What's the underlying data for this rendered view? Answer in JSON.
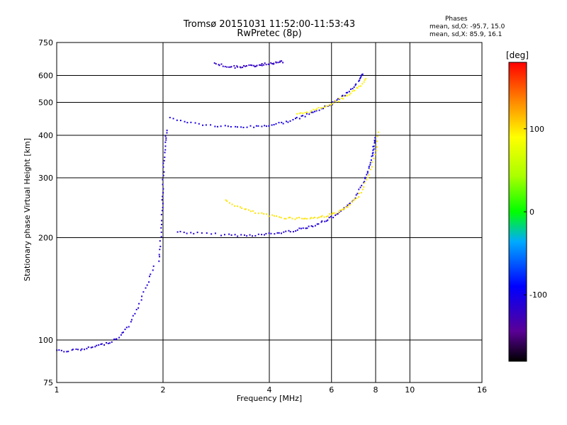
{
  "title_line1": "Tromsø 20151031 11:52:00-11:53:43",
  "title_line2": "RwPretec (8p)",
  "stats": {
    "heading": "Phases",
    "line_o": "mean, sd,O: -95.7, 15.0",
    "line_x": "mean, sd,X:  85.9, 16.1"
  },
  "colorbar": {
    "unit_label": "[deg]",
    "ticks": [
      "100",
      "0",
      "-100"
    ],
    "tick_values": [
      100,
      0,
      -100
    ],
    "range": [
      -180,
      180
    ]
  },
  "chart_data": {
    "type": "scatter",
    "xlabel": "Frequency [MHz]",
    "ylabel": "Stationary phase Virtual Height [km]",
    "xscale": "log",
    "yscale": "log",
    "xlim": [
      1,
      16
    ],
    "ylim": [
      75,
      750
    ],
    "xticks": [
      1,
      2,
      4,
      6,
      8,
      10,
      16
    ],
    "xtick_labels": [
      "1",
      "2",
      "4",
      "6",
      "8",
      "10",
      "16"
    ],
    "yticks": [
      75,
      100,
      200,
      300,
      400,
      500,
      600,
      750
    ],
    "ytick_labels": [
      "75",
      "100",
      "200",
      "300",
      "400",
      "500",
      "600",
      "750"
    ],
    "grid": true,
    "color_encoding": "phase [deg]",
    "traces": [
      {
        "x": [
          2.2,
          2.5,
          3.0,
          3.4,
          3.8,
          4.2,
          4.6,
          5.0,
          5.4,
          5.8,
          6.2,
          6.6,
          7.0,
          7.4
        ],
        "y": [
          208,
          206,
          204,
          203,
          204,
          206,
          209,
          213,
          218,
          225,
          233,
          245,
          262,
          290
        ],
        "phase": -110
      },
      {
        "x": [
          7.4,
          7.6,
          7.8,
          7.9,
          8.0
        ],
        "y": [
          290,
          315,
          345,
          370,
          395
        ],
        "phase": -100
      },
      {
        "x": [
          3.0,
          3.3,
          3.6,
          4.0,
          4.4,
          4.8,
          5.2,
          5.6,
          6.0,
          6.4,
          6.8,
          7.2,
          7.6,
          8.0,
          8.2
        ],
        "y": [
          258,
          245,
          238,
          232,
          229,
          228,
          228,
          230,
          234,
          240,
          250,
          268,
          300,
          350,
          420
        ],
        "phase": 100
      },
      {
        "x": [
          2.1,
          2.4,
          2.8,
          3.2,
          3.6,
          4.0,
          4.4,
          4.8,
          5.2,
          5.6,
          6.0,
          6.4,
          6.8,
          7.2,
          7.4
        ],
        "y": [
          450,
          435,
          426,
          423,
          424,
          428,
          436,
          448,
          462,
          478,
          495,
          518,
          545,
          580,
          610
        ],
        "phase": -105
      },
      {
        "x": [
          4.8,
          5.2,
          5.6,
          6.0,
          6.4,
          6.8,
          7.2,
          7.6
        ],
        "y": [
          460,
          470,
          482,
          496,
          512,
          532,
          556,
          590
        ],
        "phase": 95
      },
      {
        "x": [
          1.95,
          1.97,
          1.99,
          2.0,
          2.01,
          2.03,
          2.05
        ],
        "y": [
          170,
          200,
          240,
          280,
          330,
          380,
          420
        ],
        "phase": -110
      },
      {
        "x": [
          1.0,
          1.1,
          1.2,
          1.3,
          1.4,
          1.5,
          1.6,
          1.7,
          1.8,
          1.9
        ],
        "y": [
          93,
          93,
          94,
          96,
          98,
          102,
          110,
          125,
          145,
          170
        ],
        "phase": -110
      },
      {
        "x": [
          2.8,
          3.0,
          3.2,
          3.4,
          3.6,
          3.8,
          4.0,
          4.2,
          4.4
        ],
        "y": [
          650,
          640,
          635,
          638,
          640,
          645,
          650,
          655,
          658
        ],
        "phase": -120
      }
    ]
  }
}
